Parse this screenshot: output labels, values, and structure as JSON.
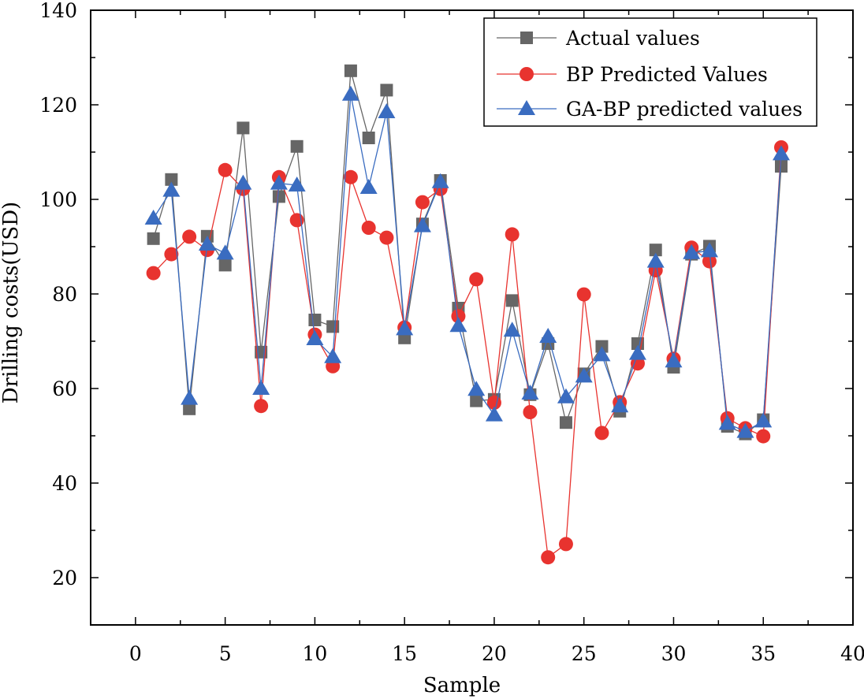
{
  "chart_data": {
    "type": "line",
    "title": "",
    "xlabel": "Sample",
    "ylabel": "Drilling costs(USD)",
    "xlim": [
      -2.5,
      40
    ],
    "ylim": [
      10,
      140
    ],
    "x_ticks": [
      0,
      5,
      10,
      15,
      20,
      25,
      30,
      35,
      40
    ],
    "y_ticks": [
      20,
      40,
      60,
      80,
      100,
      120,
      140
    ],
    "legend_position": "top-right",
    "x": [
      1,
      2,
      3,
      4,
      5,
      6,
      7,
      8,
      9,
      10,
      11,
      12,
      13,
      14,
      15,
      16,
      17,
      18,
      19,
      20,
      21,
      22,
      23,
      24,
      25,
      26,
      27,
      28,
      29,
      30,
      31,
      32,
      33,
      34,
      35,
      36
    ],
    "series": [
      {
        "name": "Actual values",
        "color": "#666666",
        "marker": "square",
        "values": [
          91.7,
          104.2,
          55.7,
          92.2,
          86.1,
          115.1,
          67.7,
          100.6,
          111.2,
          74.5,
          73.1,
          127.2,
          113.0,
          123.1,
          70.7,
          94.8,
          104.0,
          77.0,
          57.4,
          57.7,
          78.6,
          58.7,
          69.5,
          52.8,
          63.1,
          68.9,
          55.2,
          69.5,
          89.3,
          64.5,
          88.4,
          90.1,
          52.0,
          50.4,
          53.4,
          107.0
        ]
      },
      {
        "name": "BP Predicted Values",
        "color": "#e8332f",
        "marker": "circle",
        "values": [
          84.4,
          88.4,
          92.1,
          89.3,
          106.2,
          102.2,
          56.3,
          104.7,
          95.6,
          71.4,
          64.7,
          104.7,
          94.0,
          91.9,
          72.9,
          99.4,
          102.2,
          75.3,
          83.1,
          57.0,
          92.6,
          55.0,
          24.3,
          27.1,
          79.9,
          50.6,
          57.1,
          65.3,
          85.0,
          66.3,
          89.8,
          86.9,
          53.7,
          51.6,
          49.9,
          111.0
        ]
      },
      {
        "name": "GA-BP predicted values",
        "color": "#3a6cc0",
        "marker": "triangle",
        "values": [
          96.0,
          101.9,
          57.9,
          90.5,
          88.6,
          103.4,
          60.0,
          103.4,
          103.0,
          70.5,
          66.7,
          122.2,
          102.5,
          118.5,
          72.6,
          94.4,
          103.7,
          73.3,
          59.8,
          54.4,
          72.3,
          59.0,
          71.0,
          58.2,
          62.6,
          67.1,
          56.3,
          67.4,
          86.9,
          65.8,
          88.7,
          89.1,
          52.6,
          50.9,
          53.1,
          109.6
        ]
      }
    ]
  }
}
